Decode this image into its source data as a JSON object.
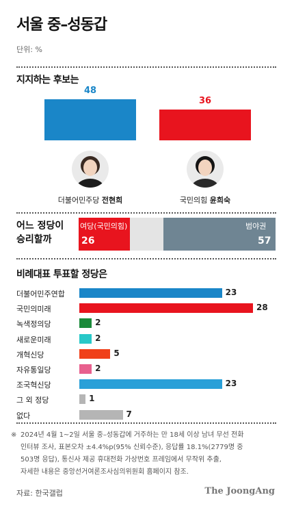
{
  "header": {
    "title": "서울 중–성동갑",
    "unit": "단위: %"
  },
  "support": {
    "title": "지지하는 후보는",
    "candidates": [
      {
        "party": "더불어민주당",
        "name": "전현희",
        "value": "48",
        "color": "#1a86c8"
      },
      {
        "party": "국민의힘",
        "name": "윤희숙",
        "value": "36",
        "color": "#e8141e"
      }
    ]
  },
  "winner": {
    "title_line1": "어느 정당이",
    "title_line2": "승리할까",
    "ruling_label": "여당(국민의힘)",
    "ruling_value": "26",
    "opposition_label": "범야권",
    "opposition_value": "57",
    "ruling_color": "#e8141e",
    "unknown_color": "#e4e4e4",
    "opposition_color": "#6f8593"
  },
  "proportional": {
    "title": "비례대표 투표할 정당은"
  },
  "chart_data": {
    "type": "bar",
    "orientation": "horizontal",
    "categories": [
      "더불어민주연합",
      "국민의미래",
      "녹색정의당",
      "새로운미래",
      "개혁신당",
      "자유통일당",
      "조국혁신당",
      "그 외 정당",
      "없다"
    ],
    "values": [
      23,
      28,
      2,
      2,
      5,
      2,
      23,
      1,
      7
    ],
    "colors": [
      "#1a86c8",
      "#e8141e",
      "#1a8a3a",
      "#28c8c8",
      "#f0401a",
      "#e8608e",
      "#2aa0d8",
      "#b5b5b5",
      "#b5b5b5"
    ],
    "xlim": [
      0,
      28
    ]
  },
  "footer": {
    "note_mark": "※",
    "note_lines": [
      "2024년 4월 1~2일 서울 중–성동갑에 거주하는 만 18세 이상 남녀 무선 전화",
      "인터뷰 조사, 표본오차 ±4.4%p(95% 신뢰수준), 응답률 18.1%(2779명 중",
      "503명 응답), 통신사 제공 휴대전화 가상번호 프레임에서 무작위 추출,",
      "자세한 내용은 중앙선거여론조사심의위원회 홈페이지 참조."
    ],
    "source": "자료: 한국갤럽",
    "brand": "The JoongAng"
  }
}
